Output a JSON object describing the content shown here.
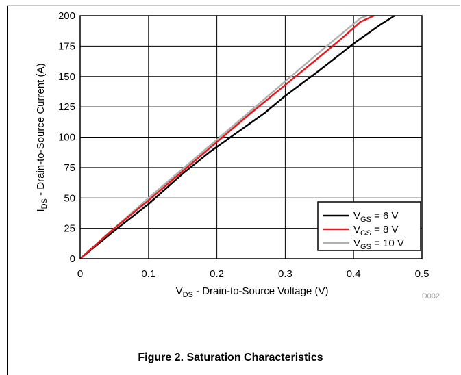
{
  "chart_data": {
    "type": "line",
    "xlabel": {
      "main": "V",
      "sub": "DS",
      "rest": " - Drain-to-Source Voltage (V)"
    },
    "ylabel": {
      "main": "I",
      "sub": "DS",
      "rest": " - Drain-to-Source Current (A)"
    },
    "xlim": [
      0,
      0.5
    ],
    "ylim": [
      0,
      200
    ],
    "x_ticks": [
      0,
      0.1,
      0.2,
      0.3,
      0.4,
      0.5
    ],
    "x_tick_labels": [
      "0",
      "0.1",
      "0.2",
      "0.3",
      "0.4",
      "0.5"
    ],
    "y_ticks": [
      0,
      25,
      50,
      75,
      100,
      125,
      150,
      175,
      200
    ],
    "y_tick_labels": [
      "0",
      "25",
      "50",
      "75",
      "100",
      "125",
      "150",
      "175",
      "200"
    ],
    "grid": true,
    "legend_position": "bottom-right",
    "series": [
      {
        "label": {
          "main": "V",
          "sub": "GS",
          "rest": " = 6 V"
        },
        "color": "#000000",
        "x": [
          0,
          0.05,
          0.1,
          0.15,
          0.19,
          0.22,
          0.27,
          0.3,
          0.35,
          0.4,
          0.44,
          0.46
        ],
        "y": [
          0,
          23,
          45,
          70,
          88,
          100,
          120,
          134,
          155,
          177,
          193,
          200
        ]
      },
      {
        "label": {
          "main": "V",
          "sub": "GS",
          "rest": " = 8 V"
        },
        "color": "#e8191d",
        "x": [
          0,
          0.05,
          0.1,
          0.15,
          0.2,
          0.25,
          0.3,
          0.35,
          0.38,
          0.41,
          0.43
        ],
        "y": [
          0,
          25,
          48,
          72,
          96,
          120,
          143,
          166,
          180,
          195,
          200
        ]
      },
      {
        "label": {
          "main": "V",
          "sub": "GS",
          "rest": " = 10 V"
        },
        "color": "#b0b0b0",
        "x": [
          0,
          0.05,
          0.1,
          0.15,
          0.2,
          0.25,
          0.3,
          0.35,
          0.41,
          0.42
        ],
        "y": [
          0,
          25,
          50,
          74,
          98,
          122,
          146,
          170,
          198,
          200
        ]
      }
    ],
    "annotation": "D002"
  },
  "caption": "Figure 2. Saturation Characteristics"
}
